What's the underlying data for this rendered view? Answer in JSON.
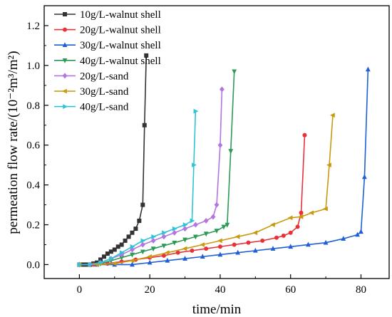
{
  "chart_data": {
    "type": "line",
    "xlabel": "time/min",
    "ylabel": "permeation flow rate/(10⁻²m³/m²)",
    "xlim": [
      -10,
      88
    ],
    "ylim": [
      -0.07,
      1.3
    ],
    "xticks": [
      "0",
      "20",
      "40",
      "60",
      "80"
    ],
    "xtick_values": [
      0,
      20,
      40,
      60,
      80
    ],
    "yticks": [
      "0.0",
      "0.2",
      "0.4",
      "0.6",
      "0.8",
      "1.0",
      "1.2"
    ],
    "ytick_values": [
      0.0,
      0.2,
      0.4,
      0.6,
      0.8,
      1.0,
      1.2
    ],
    "legend_position": "top-left",
    "grid": false,
    "series": [
      {
        "name": "10g/L-walnut shell",
        "color": "#333333",
        "marker": "square",
        "x": [
          0,
          1,
          2,
          3,
          4,
          5,
          6,
          7,
          8,
          9,
          10,
          11,
          12,
          13,
          14,
          15,
          16,
          17,
          18,
          18.5,
          19
        ],
        "y": [
          0,
          0,
          0,
          0,
          0.005,
          0.01,
          0.025,
          0.04,
          0.055,
          0.065,
          0.075,
          0.09,
          0.1,
          0.12,
          0.14,
          0.16,
          0.18,
          0.22,
          0.3,
          0.7,
          1.05
        ]
      },
      {
        "name": "20g/L-walnut shell",
        "color": "#e8323a",
        "marker": "circle",
        "x": [
          0,
          4,
          8,
          12,
          16,
          20,
          24,
          28,
          32,
          36,
          40,
          44,
          48,
          52,
          56,
          58,
          60,
          62,
          63,
          64
        ],
        "y": [
          0,
          0,
          0.005,
          0.015,
          0.025,
          0.035,
          0.045,
          0.06,
          0.07,
          0.08,
          0.09,
          0.1,
          0.11,
          0.12,
          0.135,
          0.145,
          0.16,
          0.19,
          0.26,
          0.65
        ]
      },
      {
        "name": "30g/L-walnut shell",
        "color": "#1f5fd6",
        "marker": "triangle-up",
        "x": [
          0,
          5,
          10,
          15,
          20,
          25,
          30,
          35,
          40,
          45,
          50,
          55,
          60,
          65,
          70,
          75,
          79,
          80,
          81,
          82
        ],
        "y": [
          0,
          0,
          0,
          0,
          0.01,
          0.02,
          0.03,
          0.04,
          0.05,
          0.06,
          0.07,
          0.08,
          0.09,
          0.1,
          0.11,
          0.13,
          0.15,
          0.165,
          0.44,
          0.98
        ]
      },
      {
        "name": "40g/L-walnut shell",
        "color": "#2b9a54",
        "marker": "triangle-down",
        "x": [
          0,
          3,
          6,
          9,
          12,
          15,
          18,
          21,
          24,
          27,
          30,
          33,
          36,
          39,
          41,
          42,
          43,
          44
        ],
        "y": [
          0,
          0,
          0.005,
          0.02,
          0.035,
          0.05,
          0.065,
          0.08,
          0.095,
          0.11,
          0.125,
          0.14,
          0.155,
          0.17,
          0.19,
          0.2,
          0.57,
          0.97
        ]
      },
      {
        "name": "20g/L-sand",
        "color": "#b375e0",
        "marker": "diamond",
        "x": [
          0,
          3,
          6,
          9,
          12,
          15,
          18,
          21,
          24,
          27,
          30,
          33,
          36,
          38,
          39,
          40,
          40.5
        ],
        "y": [
          0,
          0,
          0.01,
          0.03,
          0.05,
          0.075,
          0.1,
          0.12,
          0.14,
          0.16,
          0.18,
          0.2,
          0.22,
          0.24,
          0.3,
          0.6,
          0.88
        ]
      },
      {
        "name": "30g/L-sand",
        "color": "#c99a0e",
        "marker": "triangle-left",
        "x": [
          0,
          5,
          10,
          15,
          20,
          25,
          30,
          35,
          40,
          45,
          50,
          55,
          60,
          63,
          66,
          70,
          71,
          72
        ],
        "y": [
          0,
          0,
          0.005,
          0.02,
          0.04,
          0.06,
          0.08,
          0.1,
          0.12,
          0.14,
          0.16,
          0.2,
          0.235,
          0.24,
          0.26,
          0.28,
          0.5,
          0.75
        ]
      },
      {
        "name": "40g/L-sand",
        "color": "#2ec4d6",
        "marker": "triangle-right",
        "x": [
          0,
          3,
          6,
          9,
          12,
          15,
          18,
          21,
          24,
          27,
          30,
          32,
          32.5,
          33
        ],
        "y": [
          0,
          0,
          0.01,
          0.03,
          0.06,
          0.09,
          0.12,
          0.14,
          0.16,
          0.18,
          0.2,
          0.22,
          0.5,
          0.77
        ]
      }
    ]
  }
}
